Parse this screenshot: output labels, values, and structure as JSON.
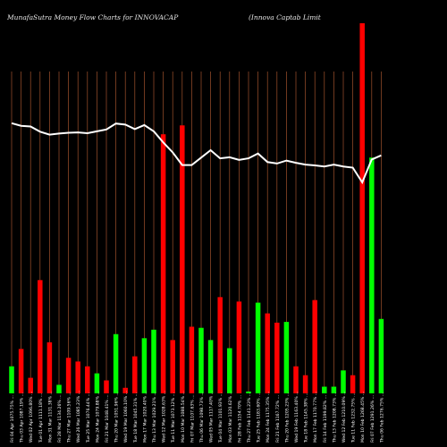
{
  "header": {
    "title": "MunafaSutra  Money  Flow  Charts for INNOVACAP",
    "company": "(Innova  Captab Limit"
  },
  "chart_data": {
    "type": "bar",
    "title": "MunafaSutra  Money  Flow  Charts for INNOVACAP",
    "ylim": [
      0,
      100
    ],
    "colors": {
      "up": "#00ff00",
      "down": "#ff0000",
      "line": "#ffffff",
      "grid": "#a0522d",
      "background": "#000000"
    },
    "categories": [
      "Fri 04 Apr 1075.75% ...",
      "Thu 03 Apr 1087.19% ...",
      "Wed 02 Apr 1096.80% ...",
      "Tue 01 Apr 1111.18% ...",
      "Mon 31 Mar 1131.38% ...",
      "Fri 28 Mar 1134.26% ...",
      "Thu 27 Mar 1109.56% ...",
      "Wed 26 Mar 1085.23% ...",
      "Tue 25 Mar 1076.44% ...",
      "Mon 24 Mar 1079.88% ...",
      "Fri 21 Mar 1048.41% ...",
      "Thu 20 Mar 1051.96% ...",
      "Wed 19 Mar 1060.10% ...",
      "Tue 18 Mar 1045.31% ...",
      "Mon 17 Mar 1020.40% ...",
      "Thu 13 Mar 1029.21% ...",
      "Wed 12 Mar 1028.63% ...",
      "Tue 11 Mar 1073.12% ...",
      "Mon 10 Mar 1088.54% ...",
      "Fri 07 Mar 1107.63% ...",
      "Thu 06 Mar 1098.73% ...",
      "Wed 05 Mar 1117.40% ...",
      "Tue 04 Mar 1101.93% ...",
      "Mon 03 Mar 1120.62% ...",
      "Fri 28 Feb 1154.70% ...",
      "Thu 27 Feb 1141.23% ...",
      "Tue 25 Feb 1183.60% ...",
      "Mon 24 Feb 1175.35% ...",
      "Fri 21 Feb 1167.72% ...",
      "Thu 20 Feb 1205.23% ...",
      "Wed 19 Feb 1163.40% ...",
      "Tue 18 Feb 1145.38% ...",
      "Mon 17 Feb 1170.77% ...",
      "Fri 14 Feb 1199.82% ...",
      "Thu 13 Feb 1208.73% ...",
      "Wed 12 Feb 1210.09% ...",
      "Tue 11 Feb 1232.75% ...",
      "Mon 10 Feb 1268.45% ...",
      "Fri 07 Feb 1291.26% ...",
      "Thu 06 Feb 1276.75% ..."
    ],
    "series": [
      {
        "values": [
          7.3,
          12,
          4.2,
          30.6,
          13.8,
          2.3,
          9.6,
          8.6,
          7.3,
          5.4,
          3.5,
          16,
          1.5,
          10,
          14.9,
          17.2,
          70,
          14.4,
          72.4,
          18,
          17.7,
          14.4,
          26,
          12.2,
          24.8,
          0.5,
          24.5,
          21.6,
          19.1,
          19.3,
          7.3,
          4.9,
          25.2,
          1.8,
          1.8,
          6.2,
          4.9,
          100,
          63.7,
          20.1
        ],
        "colors": [
          "up",
          "down",
          "down",
          "down",
          "down",
          "up",
          "down",
          "down",
          "down",
          "up",
          "down",
          "up",
          "down",
          "down",
          "up",
          "up",
          "down",
          "down",
          "down",
          "down",
          "up",
          "up",
          "down",
          "up",
          "down",
          "up",
          "up",
          "down",
          "down",
          "up",
          "down",
          "down",
          "down",
          "up",
          "up",
          "up",
          "down",
          "down",
          "up",
          "up"
        ]
      }
    ],
    "line": {
      "values": [
        73,
        72.3,
        72.1,
        70.7,
        69.9,
        70.2,
        70.4,
        70.5,
        70.3,
        70.8,
        71.3,
        72.9,
        72.6,
        71.4,
        72.5,
        70.8,
        67.8,
        65.1,
        61.7,
        61.7,
        63.7,
        65.7,
        63.5,
        63.8,
        63.1,
        63.5,
        64.8,
        62.5,
        62.1,
        62.9,
        62.3,
        61.8,
        61.6,
        61.3,
        61.8,
        61.3,
        61,
        57,
        63.2,
        64.3
      ]
    }
  }
}
